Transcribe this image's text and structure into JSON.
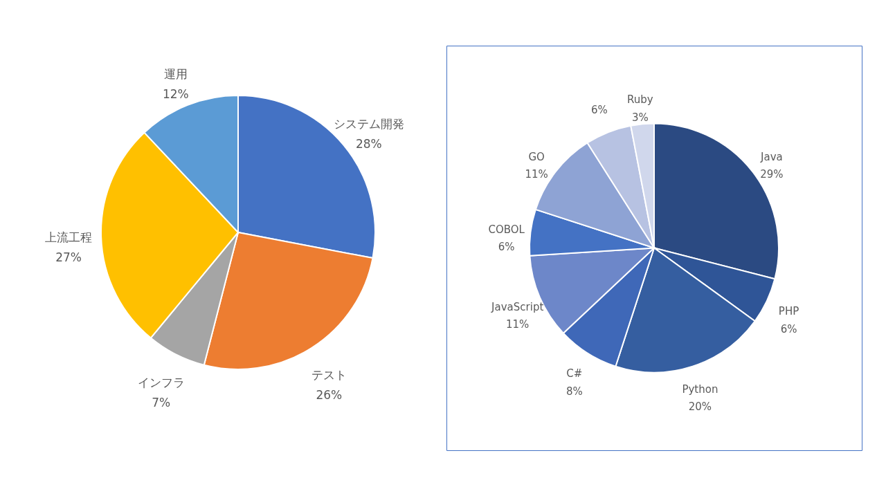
{
  "chart_data": [
    {
      "type": "pie",
      "categories": [
        "システム開発",
        "テスト",
        "インフラ",
        "上流工程",
        "運用"
      ],
      "values": [
        28,
        26,
        7,
        27,
        12
      ],
      "colors": [
        "#4472c4",
        "#ed7d31",
        "#a5a5a5",
        "#ffc000",
        "#5b9bd5"
      ],
      "value_labels": [
        "28%",
        "26%",
        "7%",
        "27%",
        "12%"
      ]
    },
    {
      "type": "pie",
      "categories": [
        "Java",
        "PHP",
        "Python",
        "C#",
        "JavaScript",
        "COBOL",
        "GO",
        null,
        "Ruby"
      ],
      "values": [
        29,
        6,
        20,
        8,
        11,
        6,
        11,
        6,
        3
      ],
      "colors": [
        "#2b4a82",
        "#2f5597",
        "#355ea0",
        "#3f68b8",
        "#6d87c9",
        "#4472c4",
        "#8ea3d4",
        "#b7c2e2",
        "#d0d7ec"
      ],
      "value_labels": [
        "29%",
        "6%",
        "20%",
        "8%",
        "11%",
        "6%",
        "11%",
        "6%",
        "3%"
      ]
    }
  ]
}
